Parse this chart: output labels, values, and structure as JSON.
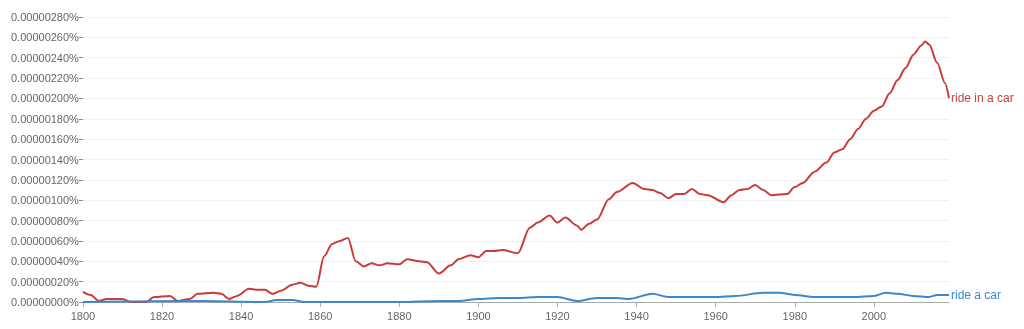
{
  "chart_data": {
    "type": "line",
    "xlim": [
      1800,
      2019
    ],
    "xticks": [
      1800,
      1820,
      1840,
      1860,
      1880,
      1900,
      1920,
      1940,
      1960,
      1980,
      2000
    ],
    "ylim": [
      0,
      2.8e-06
    ],
    "yticks": [
      {
        "value": 0,
        "label": "0.00000000%"
      },
      {
        "value": 2e-07,
        "label": "0.00000020%"
      },
      {
        "value": 4e-07,
        "label": "0.00000040%"
      },
      {
        "value": 6e-07,
        "label": "0.00000060%"
      },
      {
        "value": 8e-07,
        "label": "0.00000080%"
      },
      {
        "value": 1e-06,
        "label": "0.00000100%"
      },
      {
        "value": 1.2e-06,
        "label": "0.00000120%"
      },
      {
        "value": 1.4e-06,
        "label": "0.00000140%"
      },
      {
        "value": 1.6e-06,
        "label": "0.00000160%"
      },
      {
        "value": 1.8e-06,
        "label": "0.00000180%"
      },
      {
        "value": 2e-06,
        "label": "0.00000200%"
      },
      {
        "value": 2.2e-06,
        "label": "0.00000220%"
      },
      {
        "value": 2.4e-06,
        "label": "0.00000240%"
      },
      {
        "value": 2.6e-06,
        "label": "0.00000260%"
      },
      {
        "value": 2.8e-06,
        "label": "0.00000280%"
      }
    ],
    "grid": "y",
    "marker": "none",
    "legend": false,
    "series": [
      {
        "name": "ride in a car",
        "color": "#c83c3c",
        "x": [
          1800,
          1802,
          1804,
          1806,
          1810,
          1812,
          1816,
          1818,
          1822,
          1824,
          1827,
          1829,
          1833,
          1835,
          1837,
          1839,
          1842,
          1844,
          1846,
          1848,
          1850,
          1853,
          1855,
          1857,
          1859,
          1861,
          1863,
          1865,
          1867,
          1869,
          1871,
          1873,
          1875,
          1877,
          1880,
          1882,
          1885,
          1887,
          1890,
          1893,
          1895,
          1898,
          1900,
          1902,
          1904,
          1906,
          1910,
          1913,
          1915,
          1918,
          1920,
          1922,
          1925,
          1926,
          1928,
          1930,
          1933,
          1935,
          1939,
          1942,
          1944,
          1946,
          1948,
          1950,
          1952,
          1954,
          1956,
          1958,
          1962,
          1964,
          1966,
          1968,
          1970,
          1972,
          1974,
          1978,
          1980,
          1982,
          1985,
          1988,
          1990,
          1992,
          1994,
          1996,
          1998,
          2000,
          2002,
          2004,
          2006,
          2008,
          2010,
          2012,
          2013,
          2014,
          2016,
          2018,
          2019
        ],
        "values": [
          1e-07,
          7e-08,
          1e-08,
          3e-08,
          3e-08,
          0,
          0,
          5e-08,
          6e-08,
          1e-08,
          3e-08,
          8e-08,
          9e-08,
          8e-08,
          3e-08,
          6e-08,
          1.3e-07,
          1.2e-07,
          1.2e-07,
          8e-08,
          1.1e-07,
          1.7e-07,
          1.9e-07,
          1.6e-07,
          1.5e-07,
          4.5e-07,
          5.7e-07,
          6e-07,
          6.3e-07,
          4e-07,
          3.5e-07,
          3.8e-07,
          3.6e-07,
          3.8e-07,
          3.7e-07,
          4.2e-07,
          4e-07,
          3.9e-07,
          2.8e-07,
          3.6e-07,
          4.2e-07,
          4.6e-07,
          4.4e-07,
          5e-07,
          5e-07,
          5.1e-07,
          4.8e-07,
          7.3e-07,
          7.8e-07,
          8.5e-07,
          7.8e-07,
          8.3e-07,
          7.5e-07,
          7.1e-07,
          7.7e-07,
          8.1e-07,
          1.01e-06,
          1.08e-06,
          1.17e-06,
          1.11e-06,
          1.1e-06,
          1.07e-06,
          1.02e-06,
          1.06e-06,
          1.06e-06,
          1.11e-06,
          1.06e-06,
          1.05e-06,
          9.8e-07,
          1.05e-06,
          1.1e-06,
          1.11e-06,
          1.15e-06,
          1.1e-06,
          1.05e-06,
          1.06e-06,
          1.13e-06,
          1.17e-06,
          1.28e-06,
          1.37e-06,
          1.47e-06,
          1.5e-06,
          1.6e-06,
          1.7e-06,
          1.8e-06,
          1.88e-06,
          1.92e-06,
          2.05e-06,
          2.18e-06,
          2.3e-06,
          2.43e-06,
          2.52e-06,
          2.56e-06,
          2.53e-06,
          2.35e-06,
          2.15e-06,
          2e-06
        ]
      },
      {
        "name": "ride a car",
        "color": "#3c87cd",
        "x": [
          1800,
          1830,
          1846,
          1849,
          1853,
          1856,
          1880,
          1890,
          1895,
          1900,
          1905,
          1910,
          1915,
          1920,
          1925,
          1930,
          1935,
          1938,
          1944,
          1948,
          1955,
          1960,
          1965,
          1972,
          1976,
          1980,
          1985,
          1990,
          1995,
          2000,
          2003,
          2006,
          2010,
          2014,
          2016,
          2019
        ],
        "values": [
          0,
          1e-08,
          0,
          2e-08,
          2e-08,
          0,
          0,
          1e-08,
          1e-08,
          3e-08,
          4e-08,
          4e-08,
          5e-08,
          5e-08,
          1e-08,
          4e-08,
          4e-08,
          3e-08,
          8e-08,
          5e-08,
          5e-08,
          5e-08,
          6e-08,
          9e-08,
          9e-08,
          7e-08,
          5e-08,
          5e-08,
          5e-08,
          6e-08,
          9e-08,
          8e-08,
          6e-08,
          5e-08,
          7e-08,
          7e-08
        ]
      }
    ]
  }
}
